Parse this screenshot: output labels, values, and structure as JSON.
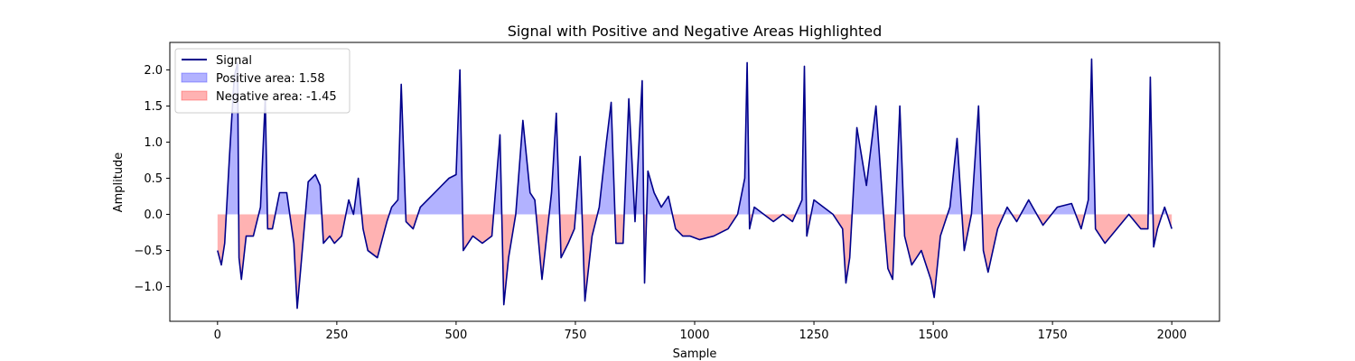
{
  "chart_data": {
    "type": "line",
    "title": "Signal with Positive and Negative Areas Highlighted",
    "xlabel": "Sample",
    "ylabel": "Amplitude",
    "xlim": [
      -100,
      2100
    ],
    "ylim": [
      -1.48,
      2.38
    ],
    "xticks": [
      0,
      250,
      500,
      750,
      1000,
      1250,
      1500,
      1750,
      2000
    ],
    "xtick_labels": [
      "0",
      "250",
      "500",
      "750",
      "1000",
      "1250",
      "1500",
      "1750",
      "2000"
    ],
    "yticks": [
      -1.0,
      -0.5,
      0.0,
      0.5,
      1.0,
      1.5,
      2.0
    ],
    "ytick_labels": [
      "−1.0",
      "−0.5",
      "0.0",
      "0.5",
      "1.0",
      "1.5",
      "2.0"
    ],
    "legend_position": "top-left",
    "series": [
      {
        "name": "Signal",
        "legend_label": "Signal",
        "color": "#00008b",
        "x": [
          0,
          8,
          15,
          25,
          35,
          42,
          45,
          50,
          60,
          75,
          90,
          100,
          105,
          115,
          130,
          145,
          160,
          167,
          175,
          190,
          205,
          215,
          222,
          235,
          245,
          260,
          275,
          285,
          295,
          305,
          315,
          335,
          355,
          365,
          378,
          385,
          395,
          410,
          425,
          440,
          455,
          470,
          485,
          500,
          508,
          515,
          535,
          555,
          575,
          592,
          600,
          610,
          625,
          640,
          655,
          665,
          680,
          700,
          710,
          720,
          735,
          748,
          760,
          770,
          775,
          785,
          800,
          815,
          825,
          835,
          850,
          862,
          875,
          885,
          890,
          895,
          902,
          915,
          930,
          945,
          960,
          975,
          990,
          1010,
          1040,
          1070,
          1090,
          1105,
          1110,
          1115,
          1125,
          1145,
          1165,
          1185,
          1205,
          1225,
          1230,
          1235,
          1250,
          1270,
          1290,
          1310,
          1317,
          1325,
          1340,
          1360,
          1380,
          1398,
          1405,
          1415,
          1430,
          1440,
          1455,
          1475,
          1495,
          1502,
          1515,
          1535,
          1550,
          1565,
          1580,
          1595,
          1605,
          1615,
          1635,
          1655,
          1675,
          1700,
          1730,
          1760,
          1790,
          1810,
          1825,
          1832,
          1840,
          1860,
          1885,
          1910,
          1935,
          1950,
          1955,
          1962,
          1970,
          1985,
          2000
        ],
        "y": [
          -0.5,
          -0.7,
          -0.4,
          0.8,
          1.9,
          2.1,
          -0.6,
          -0.9,
          -0.3,
          -0.3,
          0.1,
          1.6,
          -0.2,
          -0.2,
          0.3,
          0.3,
          -0.4,
          -1.3,
          -0.7,
          0.45,
          0.55,
          0.4,
          -0.4,
          -0.3,
          -0.4,
          -0.3,
          0.2,
          0.0,
          0.5,
          -0.2,
          -0.5,
          -0.6,
          -0.1,
          0.1,
          0.2,
          1.8,
          -0.1,
          -0.2,
          0.1,
          0.2,
          0.3,
          0.4,
          0.5,
          0.55,
          2.0,
          -0.5,
          -0.3,
          -0.4,
          -0.3,
          1.1,
          -1.25,
          -0.6,
          0.0,
          1.3,
          0.3,
          0.2,
          -0.9,
          0.3,
          1.4,
          -0.6,
          -0.4,
          -0.2,
          0.8,
          -1.2,
          -0.9,
          -0.3,
          0.1,
          1.0,
          1.55,
          -0.4,
          -0.4,
          1.6,
          -0.1,
          1.2,
          1.85,
          -0.95,
          0.6,
          0.3,
          0.1,
          0.25,
          -0.2,
          -0.3,
          -0.3,
          -0.35,
          -0.3,
          -0.2,
          0.0,
          0.5,
          2.1,
          -0.2,
          0.1,
          0.0,
          -0.1,
          0.0,
          -0.1,
          0.2,
          2.05,
          -0.3,
          0.2,
          0.1,
          0.0,
          -0.2,
          -0.95,
          -0.6,
          1.2,
          0.4,
          1.5,
          -0.2,
          -0.75,
          -0.9,
          1.5,
          -0.3,
          -0.7,
          -0.5,
          -0.9,
          -1.15,
          -0.3,
          0.1,
          1.05,
          -0.5,
          0.0,
          1.5,
          -0.5,
          -0.8,
          -0.2,
          0.1,
          -0.1,
          0.2,
          -0.15,
          0.1,
          0.15,
          -0.2,
          0.2,
          2.15,
          -0.2,
          -0.4,
          -0.2,
          0.0,
          -0.2,
          -0.2,
          1.9,
          -0.45,
          -0.2,
          0.1,
          -0.2
        ]
      }
    ],
    "areas": [
      {
        "name": "Positive area",
        "legend_label": "Positive area: 1.58",
        "color": "#0000ff",
        "alpha": 0.3,
        "sign": "positive"
      },
      {
        "name": "Negative area",
        "legend_label": "Negative area: -1.45",
        "color": "#ff0000",
        "alpha": 0.3,
        "sign": "negative"
      }
    ]
  }
}
